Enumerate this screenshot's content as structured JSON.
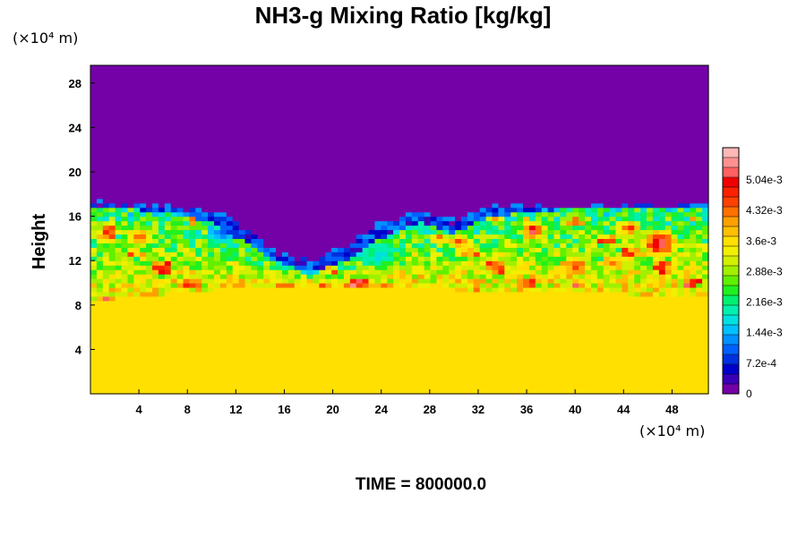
{
  "chart_data": {
    "type": "heatmap",
    "title": "NH3-g Mixing Ratio [kg/kg]",
    "ylabel": "Height",
    "xlabel": "",
    "x_unit_label": "(×10⁴ m)",
    "y_unit_label": "(×10⁴ m)",
    "x_ticks": [
      4,
      8,
      12,
      16,
      20,
      24,
      28,
      32,
      36,
      40,
      44,
      48
    ],
    "y_ticks": [
      4,
      8,
      12,
      16,
      20,
      24,
      28
    ],
    "xlim": [
      0,
      51
    ],
    "ylim": [
      0,
      29.6
    ],
    "colorbar": {
      "ticks": [
        {
          "value": 0,
          "label": "0"
        },
        {
          "value": 0.00072,
          "label": "7.2e-4"
        },
        {
          "value": 0.00144,
          "label": "1.44e-3"
        },
        {
          "value": 0.00216,
          "label": "2.16e-3"
        },
        {
          "value": 0.00288,
          "label": "2.88e-3"
        },
        {
          "value": 0.0036,
          "label": "3.6e-3"
        },
        {
          "value": 0.00432,
          "label": "4.32e-3"
        },
        {
          "value": 0.00504,
          "label": "5.04e-3"
        }
      ],
      "range": [
        0,
        0.0058
      ],
      "colors": [
        "#7400a8",
        "#3a00b8",
        "#0000cc",
        "#0030e0",
        "#0060ff",
        "#0090ff",
        "#00c0ff",
        "#00e0e0",
        "#00f0b0",
        "#00f070",
        "#20f020",
        "#60f000",
        "#a0f000",
        "#d0f000",
        "#f0f000",
        "#ffe000",
        "#ffc000",
        "#ffa000",
        "#ff7000",
        "#ff4000",
        "#ff2000",
        "#f00000",
        "#ff6060",
        "#ff9090",
        "#ffb8b8"
      ]
    },
    "background_value": 0.0037,
    "profile": [
      {
        "x": 0,
        "top": 17.2,
        "dip": 16.8
      },
      {
        "x": 6,
        "top": 17.0,
        "dip": 16.5
      },
      {
        "x": 10,
        "top": 16.5,
        "dip": 15.5
      },
      {
        "x": 13,
        "top": 15.0,
        "dip": 13.5
      },
      {
        "x": 15,
        "top": 12.8,
        "dip": 12.0
      },
      {
        "x": 18,
        "top": 12.2,
        "dip": 11.0
      },
      {
        "x": 21,
        "top": 13.2,
        "dip": 12.0
      },
      {
        "x": 24,
        "top": 15.5,
        "dip": 14.0
      },
      {
        "x": 27,
        "top": 16.5,
        "dip": 15.5
      },
      {
        "x": 30,
        "top": 15.5,
        "dip": 14.5
      },
      {
        "x": 33,
        "top": 16.8,
        "dip": 16.0
      },
      {
        "x": 40,
        "top": 17.0,
        "dip": 16.8
      },
      {
        "x": 51,
        "top": 17.2,
        "dip": 16.8
      }
    ],
    "lower_boundary": [
      {
        "x": 0,
        "y": 9.0
      },
      {
        "x": 10,
        "y": 10.0
      },
      {
        "x": 20,
        "y": 10.2
      },
      {
        "x": 30,
        "y": 10.0
      },
      {
        "x": 40,
        "y": 9.7
      },
      {
        "x": 51,
        "y": 9.4
      }
    ],
    "hotspots": [
      {
        "x": 1.5,
        "y": 14.8,
        "r": 1.0,
        "v": 0.0055
      },
      {
        "x": 4.0,
        "y": 14.2,
        "r": 1.5,
        "v": 0.0046
      },
      {
        "x": 36.5,
        "y": 14.8,
        "r": 1.3,
        "v": 0.0056
      },
      {
        "x": 47.0,
        "y": 13.6,
        "r": 1.8,
        "v": 0.0057
      },
      {
        "x": 44.5,
        "y": 15.0,
        "r": 1.2,
        "v": 0.005
      },
      {
        "x": 40.0,
        "y": 11.5,
        "r": 1.4,
        "v": 0.0047
      },
      {
        "x": 30.5,
        "y": 13.8,
        "r": 1.1,
        "v": 0.0048
      },
      {
        "x": 43.0,
        "y": 11.8,
        "r": 1.0,
        "v": 0.0046
      },
      {
        "x": 33.5,
        "y": 15.8,
        "r": 0.9,
        "v": 0.0044
      }
    ],
    "coldspots": [
      {
        "x": 11.0,
        "y": 14.5,
        "r": 1.6,
        "v": 0.001
      },
      {
        "x": 24.0,
        "y": 12.5,
        "r": 2.4,
        "v": 0.0017
      },
      {
        "x": 18.0,
        "y": 11.3,
        "r": 1.1,
        "v": 0.0008
      },
      {
        "x": 27.5,
        "y": 14.8,
        "r": 1.0,
        "v": 0.0016
      }
    ]
  },
  "time_label": "TIME = 800000.0"
}
